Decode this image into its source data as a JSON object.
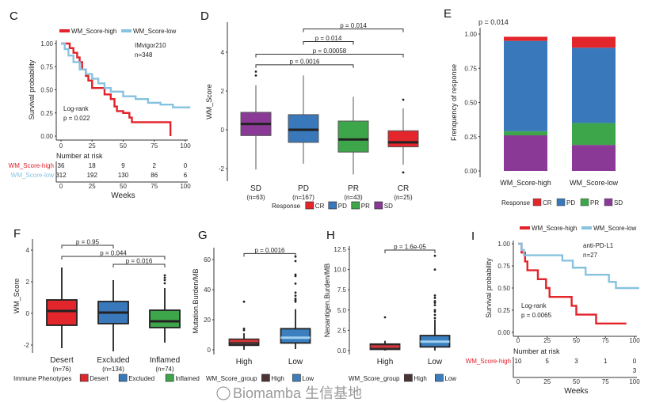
{
  "colors": {
    "red": "#e3222a",
    "lightblue": "#87c3df",
    "SD": "#8a3a96",
    "PD": "#3878bb",
    "PR": "#3ea64a",
    "CR": "#e2262b",
    "group_high": "#4a3434",
    "group_low": "#3b7fbf"
  },
  "watermark": "Biomamba 生信基地",
  "chart_data": [
    {
      "panel": "C",
      "type": "line",
      "subtype": "kaplan-meier",
      "legend": [
        "WM_Score-high",
        "WM_Score-low"
      ],
      "ylabel": "Survival probability",
      "xlabel": "Weeks",
      "yticks": [
        "0.00",
        "0.25",
        "0.50",
        "0.75",
        "1.00"
      ],
      "xticks": [
        "0",
        "25",
        "50",
        "75",
        "100"
      ],
      "xlim": [
        0,
        100
      ],
      "ylim": [
        0,
        1
      ],
      "annotation": {
        "cohort": "IMvigor210",
        "n": "n=348",
        "test": "Log-rank",
        "p": "p = 0.022"
      },
      "series": [
        {
          "name": "WM_Score-high",
          "color": "#e3222a",
          "steps": [
            [
              0,
              1
            ],
            [
              5,
              1
            ],
            [
              7,
              0.95
            ],
            [
              10,
              0.9
            ],
            [
              13,
              0.85
            ],
            [
              15,
              0.8
            ],
            [
              17,
              0.72
            ],
            [
              20,
              0.65
            ],
            [
              22,
              0.6
            ],
            [
              25,
              0.52
            ],
            [
              33,
              0.52
            ],
            [
              35,
              0.45
            ],
            [
              40,
              0.4
            ],
            [
              43,
              0.32
            ],
            [
              45,
              0.27
            ],
            [
              50,
              0.25
            ],
            [
              55,
              0.2
            ],
            [
              57,
              0.15
            ],
            [
              88,
              0.15
            ],
            [
              88,
              0
            ]
          ]
        },
        {
          "name": "WM_Score-low",
          "color": "#87c3df",
          "steps": [
            [
              0,
              1
            ],
            [
              3,
              0.94
            ],
            [
              6,
              0.87
            ],
            [
              10,
              0.8
            ],
            [
              15,
              0.72
            ],
            [
              20,
              0.67
            ],
            [
              25,
              0.62
            ],
            [
              30,
              0.57
            ],
            [
              35,
              0.52
            ],
            [
              40,
              0.48
            ],
            [
              50,
              0.43
            ],
            [
              60,
              0.4
            ],
            [
              70,
              0.36
            ],
            [
              80,
              0.34
            ],
            [
              90,
              0.31
            ],
            [
              104,
              0.31
            ]
          ]
        }
      ],
      "risk_table": {
        "title": "Number at risk",
        "xlabel": "Weeks",
        "rows": [
          {
            "label": "WM_Score-high",
            "values": [
              "36",
              "18",
              "9",
              "2",
              "0"
            ]
          },
          {
            "label": "WM_Score-low",
            "values": [
              "312",
              "192",
              "130",
              "86",
              "6"
            ]
          }
        ]
      }
    },
    {
      "panel": "D",
      "type": "box",
      "ylabel": "WM_Score",
      "yticks": [
        "-2",
        "0",
        "2",
        "4"
      ],
      "categories": [
        "SD",
        "PD",
        "PR",
        "CR"
      ],
      "counts": [
        "(n=63)",
        "(n=167)",
        "(n=43)",
        "(n=25)"
      ],
      "boxes": [
        {
          "q1": -0.3,
          "median": 0.3,
          "q3": 0.9,
          "low": -2.05,
          "high": 2.3,
          "outliers": [
            2.8,
            3.0
          ]
        },
        {
          "q1": -0.65,
          "median": 0.0,
          "q3": 0.78,
          "low": -1.75,
          "high": 2.8,
          "outliers": []
        },
        {
          "q1": -1.15,
          "median": -0.5,
          "q3": 0.45,
          "low": -2.3,
          "high": 1.7,
          "outliers": []
        },
        {
          "q1": -0.88,
          "median": -0.65,
          "q3": -0.05,
          "low": -1.8,
          "high": 1.1,
          "outliers": [
            1.55,
            -2.2
          ]
        }
      ],
      "comparisons": [
        {
          "from": 0,
          "to": 2,
          "y": 3.35,
          "label": "p = 0.0016"
        },
        {
          "from": 0,
          "to": 3,
          "y": 3.9,
          "label": "p = 0.00058"
        },
        {
          "from": 1,
          "to": 2,
          "y": 4.55,
          "label": "p = 0.014"
        },
        {
          "from": 1,
          "to": 3,
          "y": 5.2,
          "label": "p = 0.014"
        }
      ],
      "legend": {
        "title": "Response",
        "items": [
          "CR",
          "PD",
          "PR",
          "SD"
        ]
      }
    },
    {
      "panel": "E",
      "type": "bar",
      "stacked": true,
      "title": "p = 0.014",
      "ylabel": "Frenquency of response",
      "yticks": [
        "0.00",
        "0.25",
        "0.50",
        "0.75",
        "1.00"
      ],
      "ylim": [
        0,
        1
      ],
      "categories": [
        "WM_Score-high",
        "WM_Score-low"
      ],
      "series": [
        {
          "name": "SD",
          "values": [
            0.26,
            0.19
          ]
        },
        {
          "name": "PR",
          "values": [
            0.03,
            0.16
          ]
        },
        {
          "name": "PD",
          "values": [
            0.66,
            0.55
          ]
        },
        {
          "name": "CR",
          "values": [
            0.03,
            0.08
          ]
        }
      ],
      "legend": {
        "title": "Response",
        "items": [
          "CR",
          "PD",
          "PR",
          "SD"
        ]
      }
    },
    {
      "panel": "F",
      "type": "box",
      "ylabel": "WM_Score",
      "yticks": [
        "-2",
        "0",
        "2",
        "4"
      ],
      "categories": [
        "Desert",
        "Excluded",
        "Inflamed"
      ],
      "counts": [
        "(n=76)",
        "(n=134)",
        "(n=74)"
      ],
      "boxes": [
        {
          "q1": -0.75,
          "median": 0.15,
          "q3": 0.85,
          "low": -2.2,
          "high": 2.9,
          "outliers": []
        },
        {
          "q1": -0.65,
          "median": 0.05,
          "q3": 0.75,
          "low": -2.4,
          "high": 2.1,
          "outliers": []
        },
        {
          "q1": -0.9,
          "median": -0.5,
          "q3": 0.2,
          "low": -1.85,
          "high": 1.6,
          "outliers": [
            1.9,
            2.1,
            2.25,
            2.4
          ]
        }
      ],
      "comparisons": [
        {
          "from": 0,
          "to": 1,
          "y": 4.3,
          "label": "p = 0.95"
        },
        {
          "from": 0,
          "to": 2,
          "y": 3.6,
          "label": "p = 0.044"
        },
        {
          "from": 1,
          "to": 2,
          "y": 3.1,
          "label": "p = 0.016"
        }
      ],
      "legend": {
        "title": "Immune Phenotypes",
        "items": [
          "Desert",
          "Excluded",
          "Inflamed"
        ]
      }
    },
    {
      "panel": "G",
      "type": "box",
      "ylabel": "Mutation.Burden/MB",
      "yticks": [
        "0",
        "20",
        "40",
        "60"
      ],
      "categories": [
        "High",
        "Low"
      ],
      "boxes": [
        {
          "q1": 3,
          "median": 6,
          "q3": 7,
          "low": 0,
          "high": 11,
          "outliers": [
            13,
            14,
            32
          ]
        },
        {
          "q1": 4.5,
          "median": 8,
          "q3": 14,
          "low": 0.5,
          "high": 27,
          "outliers": [
            32,
            33,
            34,
            36,
            38,
            44,
            49,
            50,
            59,
            62
          ]
        }
      ],
      "comparisons": [
        {
          "from": 0,
          "to": 1,
          "y": 64,
          "label": "p = 0.0016"
        }
      ],
      "legend": {
        "title": "WM_Score_group",
        "items": [
          "High",
          "Low"
        ]
      }
    },
    {
      "panel": "H",
      "type": "box",
      "ylabel": "Neoantigen.Burden/MB",
      "yticks": [
        "0.0",
        "2.5",
        "5.0",
        "7.5",
        "10.0",
        "12.5"
      ],
      "categories": [
        "High",
        "Low"
      ],
      "boxes": [
        {
          "q1": 0.15,
          "median": 0.5,
          "q3": 0.8,
          "low": 0,
          "high": 1.2,
          "outliers": [
            4.1
          ]
        },
        {
          "q1": 0.45,
          "median": 1.1,
          "q3": 1.85,
          "low": 0,
          "high": 3.8,
          "outliers": [
            4.0,
            4.4,
            4.8,
            5.0,
            5.6,
            5.9,
            6.1,
            6.5,
            6.8,
            10.0,
            11.7
          ]
        }
      ],
      "comparisons": [
        {
          "from": 0,
          "to": 1,
          "y": 12.4,
          "label": "p = 1.6e-05"
        }
      ],
      "legend": {
        "title": "WM_Score_group",
        "items": [
          "High",
          "Low"
        ]
      }
    },
    {
      "panel": "I",
      "type": "line",
      "subtype": "kaplan-meier",
      "legend": [
        "WM_Score-high",
        "WM_Score-low"
      ],
      "ylabel": "Survival probability",
      "xlabel": "Weeks",
      "yticks": [
        "0.00",
        "0.25",
        "0.50",
        "0.75",
        "1.00"
      ],
      "xticks": [
        "0",
        "25",
        "50",
        "75",
        "100"
      ],
      "xlim": [
        0,
        100
      ],
      "ylim": [
        0,
        1
      ],
      "annotation": {
        "cohort": "anti-PD-L1",
        "n": "n=27",
        "test": "Log-rank",
        "p": "p = 0.0065"
      },
      "series": [
        {
          "name": "WM_Score-high",
          "color": "#e3222a",
          "steps": [
            [
              0,
              1
            ],
            [
              3,
              0.9
            ],
            [
              6,
              0.8
            ],
            [
              8,
              0.7
            ],
            [
              17,
              0.7
            ],
            [
              17,
              0.6
            ],
            [
              24,
              0.6
            ],
            [
              24,
              0.5
            ],
            [
              27,
              0.4
            ],
            [
              46,
              0.4
            ],
            [
              46,
              0.3
            ],
            [
              50,
              0.3
            ],
            [
              50,
              0.2
            ],
            [
              67,
              0.2
            ],
            [
              67,
              0.1
            ],
            [
              93,
              0.1
            ]
          ]
        },
        {
          "name": "WM_Score-low",
          "color": "#87c3df",
          "steps": [
            [
              0,
              1
            ],
            [
              3,
              0.93
            ],
            [
              5,
              0.87
            ],
            [
              38,
              0.87
            ],
            [
              38,
              0.81
            ],
            [
              47,
              0.81
            ],
            [
              47,
              0.73
            ],
            [
              58,
              0.73
            ],
            [
              58,
              0.65
            ],
            [
              78,
              0.65
            ],
            [
              78,
              0.57
            ],
            [
              84,
              0.57
            ],
            [
              84,
              0.5
            ],
            [
              104,
              0.5
            ]
          ]
        }
      ],
      "risk_table": {
        "title": "Number at risk",
        "xlabel": "Weeks",
        "rows": [
          {
            "label": "WM_Score-high",
            "values": [
              "10",
              "5",
              "3",
              "1",
              "0"
            ]
          },
          {
            "label": "",
            "values": [
              "",
              "",
              "",
              "",
              "3"
            ]
          }
        ]
      }
    }
  ]
}
